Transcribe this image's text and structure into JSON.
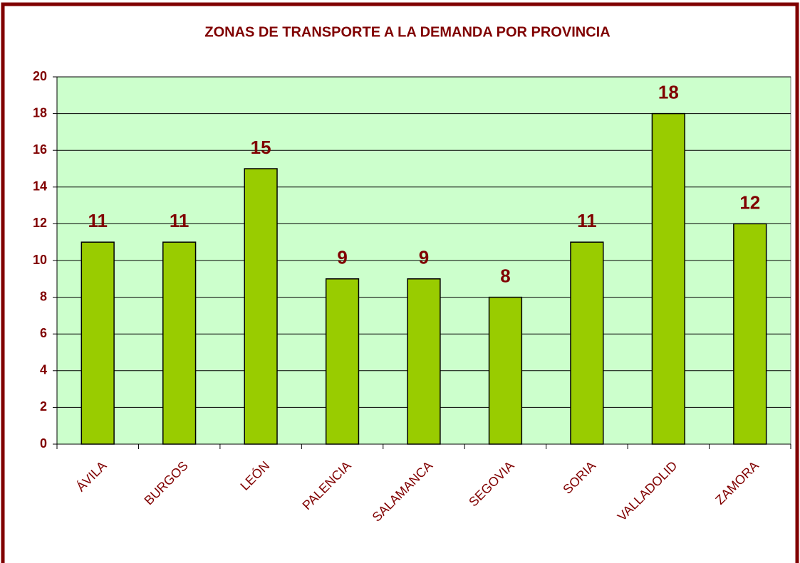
{
  "chart_data": {
    "type": "bar",
    "title": "ZONAS DE TRANSPORTE A LA DEMANDA POR PROVINCIA",
    "categories": [
      "ÁVILA",
      "BURGOS",
      "LEÓN",
      "PALENCIA",
      "SALAMANCA",
      "SEGOVIA",
      "SORIA",
      "VALLADOLID",
      "ZAMORA"
    ],
    "values": [
      11,
      11,
      15,
      9,
      9,
      8,
      11,
      18,
      12
    ],
    "color": "#99cc00",
    "plot_background": "#ccffcc",
    "ylim": [
      0,
      20
    ],
    "yticks": [
      0,
      2,
      4,
      6,
      8,
      10,
      12,
      14,
      16,
      18,
      20
    ],
    "grid": true
  }
}
